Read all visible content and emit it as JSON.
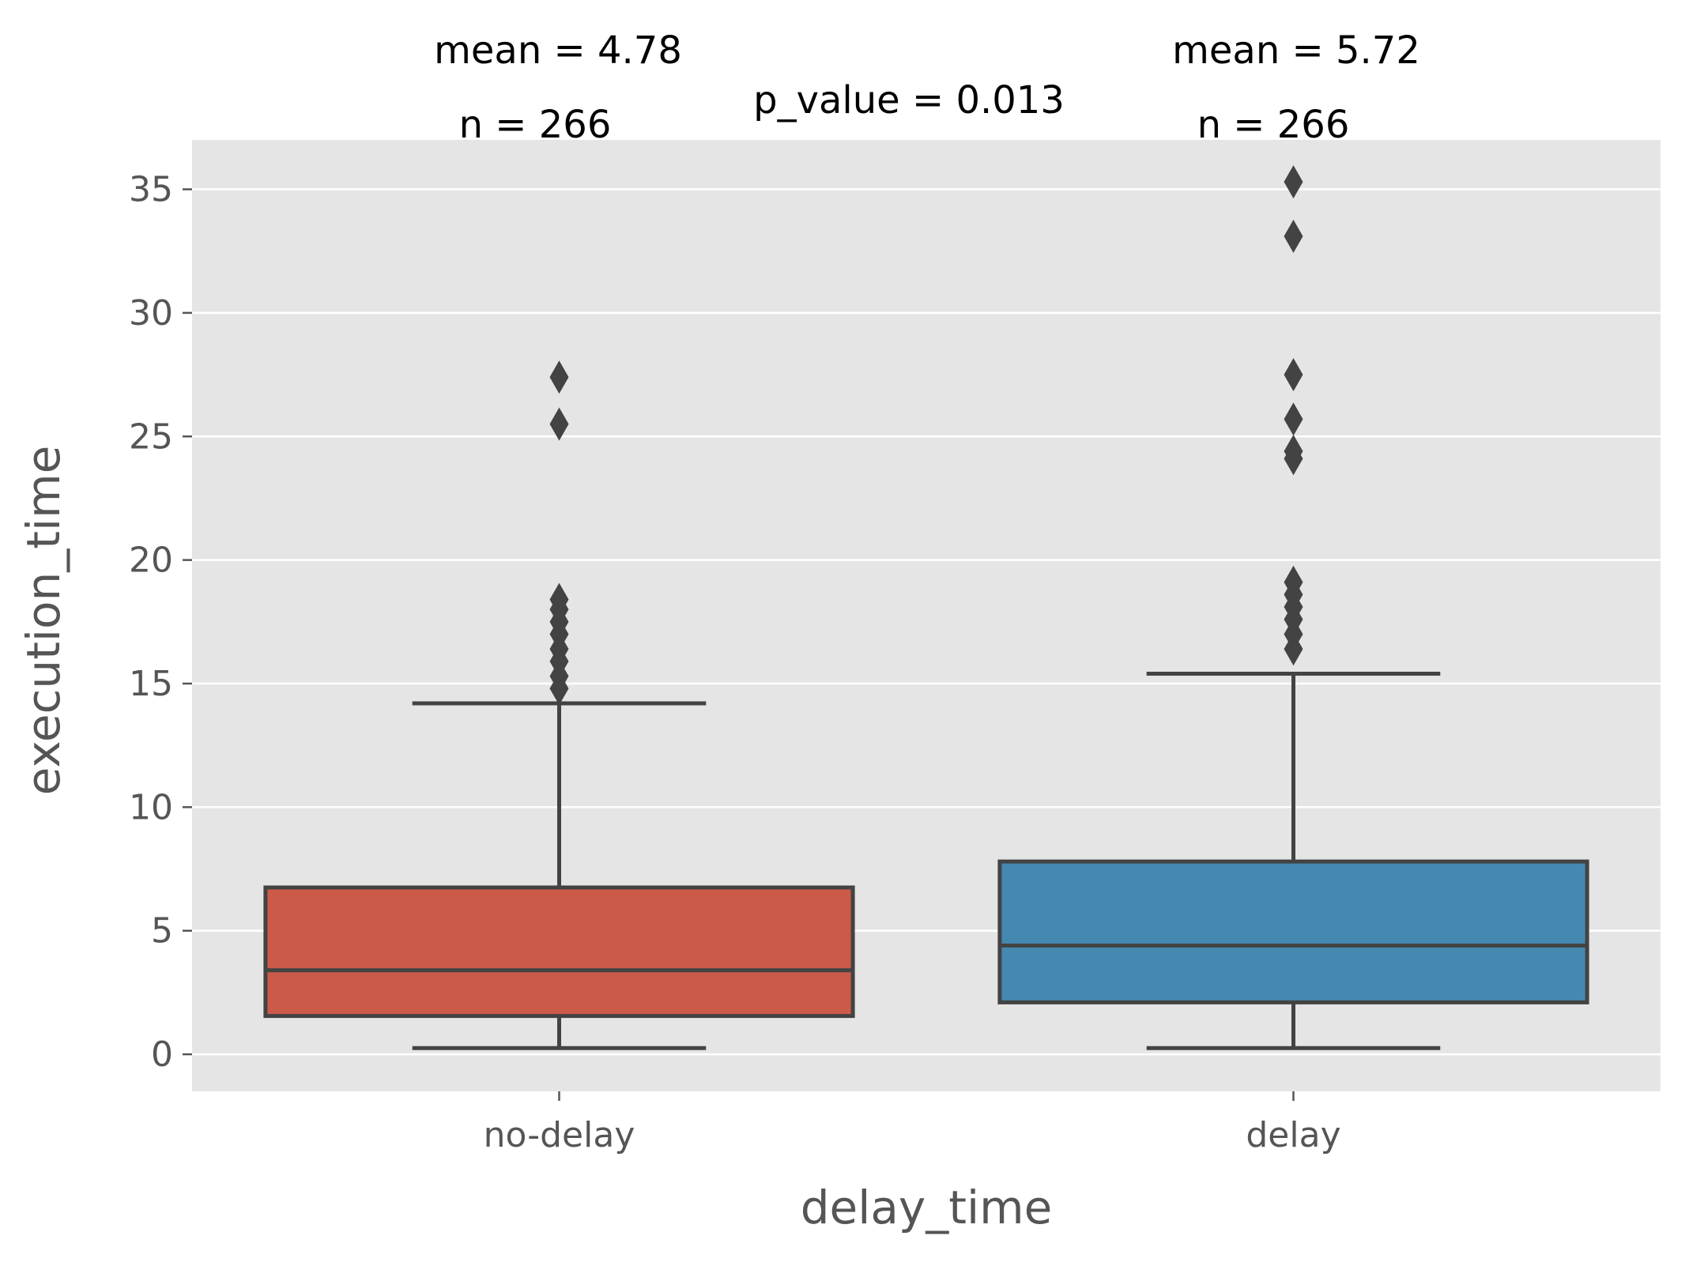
{
  "chart_data": {
    "type": "box",
    "xlabel": "delay_time",
    "ylabel": "execution_time",
    "ylim": [
      -1.5,
      37
    ],
    "yticks": [
      0,
      5,
      10,
      15,
      20,
      25,
      30,
      35
    ],
    "grid": true,
    "style": "ggplot",
    "categories": [
      "no-delay",
      "delay"
    ],
    "boxes": [
      {
        "category": "no-delay",
        "color": "#cc5a49",
        "whisker_low": 0.25,
        "q1": 1.55,
        "median": 3.4,
        "q3": 6.75,
        "whisker_high": 14.2,
        "outliers": [
          14.8,
          15.3,
          15.9,
          16.4,
          17.0,
          17.5,
          18.0,
          18.4,
          25.5,
          27.4
        ]
      },
      {
        "category": "delay",
        "color": "#4588b0",
        "whisker_low": 0.25,
        "q1": 2.1,
        "median": 4.4,
        "q3": 7.8,
        "whisker_high": 15.4,
        "outliers": [
          16.4,
          17.0,
          17.6,
          18.1,
          18.6,
          19.1,
          24.1,
          24.4,
          25.7,
          27.5,
          33.1,
          35.3
        ]
      }
    ],
    "annotations": {
      "no-delay": {
        "mean_text": "mean = 4.78",
        "n_text": "n = 266"
      },
      "delay": {
        "mean_text": "mean = 5.72",
        "n_text": "n = 266"
      },
      "p_value_text": "p_value = 0.013"
    },
    "colors": {
      "panel_bg": "#e5e5e5",
      "grid": "#ffffff",
      "line": "#434343"
    }
  }
}
